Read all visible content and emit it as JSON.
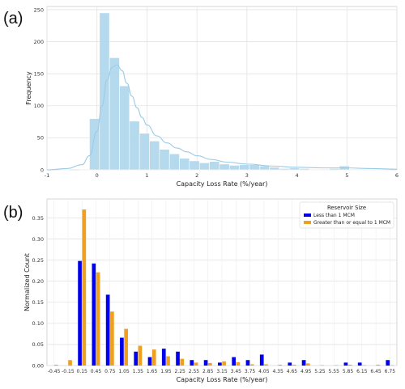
{
  "panel_labels": [
    "(a)",
    "(b)"
  ],
  "chart_data": [
    {
      "type": "bar",
      "subtype": "histogram with KDE curve",
      "title": "",
      "xlabel": "Capacity Loss Rate (%/year)",
      "ylabel": "Frequency",
      "xlim": [
        -1,
        6
      ],
      "ylim": [
        0,
        255
      ],
      "xticks": [
        -1,
        0,
        1,
        2,
        3,
        4,
        5,
        6
      ],
      "yticks": [
        0,
        50,
        100,
        150,
        200,
        250
      ],
      "grid": true,
      "bar_color": "#aed6ec",
      "kde_color": "#9ccbe6",
      "bin_edges": [
        -0.75,
        -0.55,
        -0.35,
        -0.15,
        0.05,
        0.25,
        0.45,
        0.65,
        0.85,
        1.05,
        1.25,
        1.45,
        1.65,
        1.85,
        2.05,
        2.25,
        2.45,
        2.65,
        2.85,
        3.05,
        3.25,
        3.45,
        3.65,
        3.85,
        4.05,
        4.25,
        4.45,
        4.65,
        4.85,
        5.05,
        5.25,
        5.45,
        5.65,
        5.85
      ],
      "values": [
        1,
        0,
        1,
        80,
        245,
        175,
        131,
        76,
        57,
        45,
        32,
        25,
        18,
        14,
        11,
        13,
        9,
        7,
        8,
        8,
        6,
        4,
        2,
        3,
        2,
        1,
        1,
        2,
        6,
        1,
        1,
        1,
        1
      ],
      "kde": {
        "x": [
          -1,
          -0.6,
          -0.3,
          -0.15,
          0,
          0.1,
          0.2,
          0.3,
          0.4,
          0.5,
          0.6,
          0.7,
          0.8,
          0.9,
          1.0,
          1.2,
          1.4,
          1.6,
          1.8,
          2.0,
          2.3,
          2.6,
          3.0,
          3.5,
          4.0,
          4.5,
          5.0,
          5.5,
          6.0
        ],
        "y": [
          0,
          2,
          8,
          22,
          60,
          100,
          140,
          160,
          164,
          155,
          135,
          115,
          97,
          82,
          70,
          53,
          42,
          34,
          28,
          22,
          16,
          12,
          9,
          6,
          4,
          3,
          3,
          2,
          1
        ]
      }
    },
    {
      "type": "bar",
      "subtype": "grouped bar",
      "title": "",
      "xlabel": "Capacity Loss Rate (%/year)",
      "ylabel": "Normalized Count",
      "ylim": [
        0,
        0.395
      ],
      "yticks": [
        "0.00",
        "0.05",
        "0.10",
        "0.15",
        "0.20",
        "0.25",
        "0.30",
        "0.35"
      ],
      "grid": true,
      "legend": {
        "title": "Reservoir Size",
        "placement": "top-right"
      },
      "categories": [
        "-0.45",
        "-0.15",
        "0.15",
        "0.45",
        "0.75",
        "1.05",
        "1.35",
        "1.65",
        "1.95",
        "2.25",
        "2.55",
        "2.85",
        "3.15",
        "3.45",
        "3.75",
        "4.05",
        "4.35",
        "4.65",
        "4.95",
        "5.25",
        "5.55",
        "5.85",
        "6.15",
        "6.45",
        "6.75"
      ],
      "series": [
        {
          "name": "Less than 1 MCM",
          "color": "#0000ee",
          "values": [
            0,
            0,
            0.248,
            0.242,
            0.168,
            0.066,
            0.033,
            0.02,
            0.04,
            0.033,
            0.013,
            0.013,
            0.007,
            0.02,
            0.013,
            0.026,
            0,
            0.007,
            0.013,
            0,
            0,
            0.007,
            0.007,
            0,
            0.013
          ]
        },
        {
          "name": "Greater than or equal to 1 MCM",
          "color": "#f0a020",
          "values": [
            0.002,
            0.013,
            0.37,
            0.221,
            0.128,
            0.087,
            0.047,
            0.038,
            0.022,
            0.016,
            0.007,
            0.006,
            0.01,
            0.008,
            0.003,
            0.003,
            0.002,
            0.002,
            0.005,
            0.001,
            0.001,
            0.002,
            0.001,
            0.002,
            0.001
          ]
        }
      ]
    }
  ]
}
